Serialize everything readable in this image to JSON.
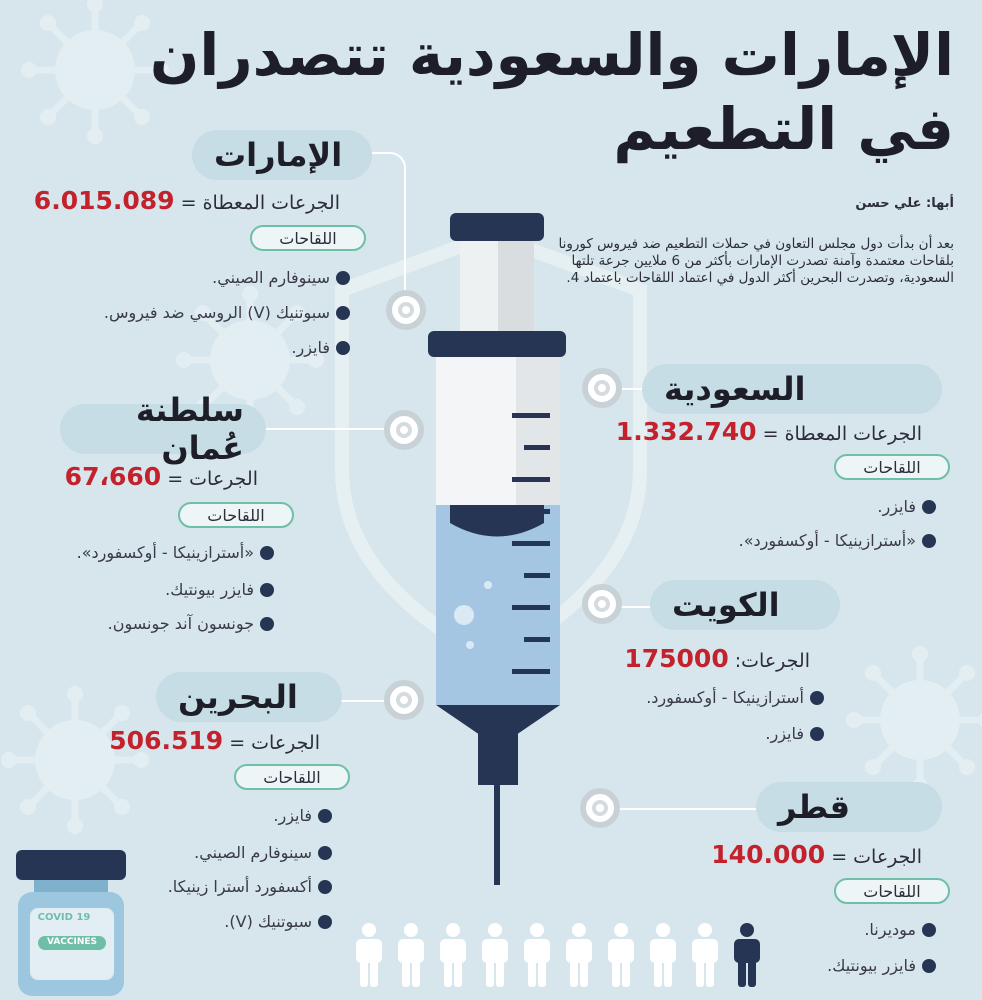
{
  "title": {
    "line1": "الإمارات والسعودية تتصدران",
    "line2": "في التطعيم"
  },
  "byline": "أبها: علي حسن",
  "intro": "بعد أن بدأت دول مجلس التعاون في حملات التطعيم ضد فيروس كورونا بلقاحات معتمدة وآمنة تصدرت الإمارات بأكثر من 6 ملايين جرعة تلتها السعودية، وتصدرت البحرين أكثر الدول في اعتماد اللقاحات باعتماد 4.",
  "vaccines_tag": "اللقاحات",
  "countries": {
    "uae": {
      "name": "الإمارات",
      "stat_label": "الجرعات المعطاة =",
      "value": "6.015.089",
      "vaccines": [
        "سينوفارم الصيني.",
        "سبوتنيك (V) الروسي ضد فيروس.",
        "فايزر."
      ]
    },
    "saudi": {
      "name": "السعودية",
      "stat_label": "الجرعات المعطاة =",
      "value": "1.332.740",
      "vaccines": [
        "فايزر.",
        "«أسترازينيكا - أوكسفورد»."
      ]
    },
    "oman": {
      "name": "سلطنة عُمان",
      "stat_label": "الجرعات =",
      "value": "67،660",
      "vaccines": [
        "«أسترازينيكا - أوكسفورد».",
        "فايزر بيونتيك.",
        "جونسون آند جونسون."
      ]
    },
    "kuwait": {
      "name": "الكويت",
      "stat_label": "الجرعات:",
      "value": "175000",
      "vaccines": [
        "أسترازينيكا - أوكسفورد.",
        "فايزر."
      ]
    },
    "bahrain": {
      "name": "البحرين",
      "stat_label": "الجرعات =",
      "value": "506.519",
      "vaccines": [
        "فايزر.",
        "سينوفارم الصيني.",
        "أكسفورد أسترا زينيكا.",
        "سبوتنيك (V)."
      ]
    },
    "qatar": {
      "name": "قطر",
      "stat_label": "الجرعات =",
      "value": "140.000",
      "vaccines": [
        "موديرنا.",
        "فايزر بيونتيك."
      ]
    }
  },
  "vial": {
    "line1": "COVID 19",
    "line2": "VACCINES"
  },
  "colors": {
    "accent": "#c3222c",
    "navy": "#263554",
    "tag_border": "#6fbfa8",
    "pill": "#c6dde6",
    "background": "#d6e6ec"
  },
  "people": {
    "count": 10,
    "highlighted": 1
  }
}
